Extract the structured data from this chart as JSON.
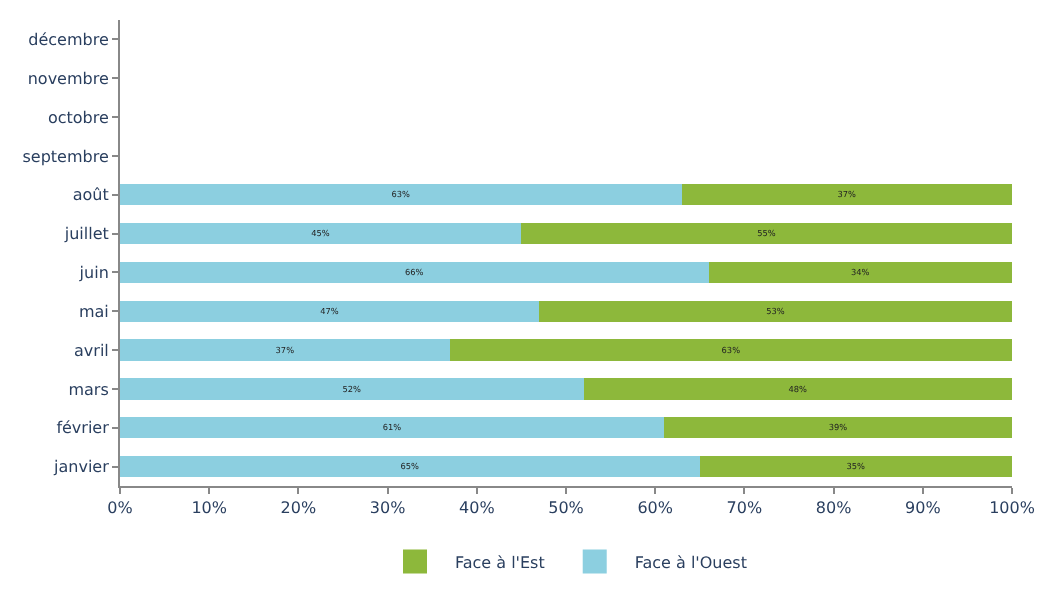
{
  "chart_data": {
    "type": "bar",
    "orientation": "horizontal",
    "stacked": true,
    "categories": [
      "décembre",
      "novembre",
      "octobre",
      "septembre",
      "août",
      "juillet",
      "juin",
      "mai",
      "avril",
      "mars",
      "février",
      "janvier"
    ],
    "series": [
      {
        "name": "Face à l'Ouest",
        "color": "#8ccfe0",
        "values": [
          null,
          null,
          null,
          null,
          63,
          45,
          66,
          47,
          37,
          52,
          61,
          65
        ],
        "value_labels": [
          null,
          null,
          null,
          null,
          "63%",
          "45%",
          "66%",
          "47%",
          "37%",
          "52%",
          "61%",
          "65%"
        ]
      },
      {
        "name": "Face à l'Est",
        "color": "#8db83b",
        "values": [
          null,
          null,
          null,
          null,
          37,
          55,
          34,
          53,
          63,
          48,
          39,
          35
        ],
        "value_labels": [
          null,
          null,
          null,
          null,
          "37%",
          "55%",
          "34%",
          "53%",
          "63%",
          "48%",
          "39%",
          "35%"
        ]
      }
    ],
    "xlim": [
      0,
      100
    ],
    "xticks": [
      {
        "value": 0,
        "label": "0%"
      },
      {
        "value": 10,
        "label": "10%"
      },
      {
        "value": 20,
        "label": "20%"
      },
      {
        "value": 30,
        "label": "30%"
      },
      {
        "value": 40,
        "label": "40%"
      },
      {
        "value": 50,
        "label": "50%"
      },
      {
        "value": 60,
        "label": "60%"
      },
      {
        "value": 70,
        "label": "70%"
      },
      {
        "value": 80,
        "label": "80%"
      },
      {
        "value": 90,
        "label": "90%"
      },
      {
        "value": 100,
        "label": "100%"
      }
    ],
    "grid": false,
    "legend": "bottom"
  }
}
